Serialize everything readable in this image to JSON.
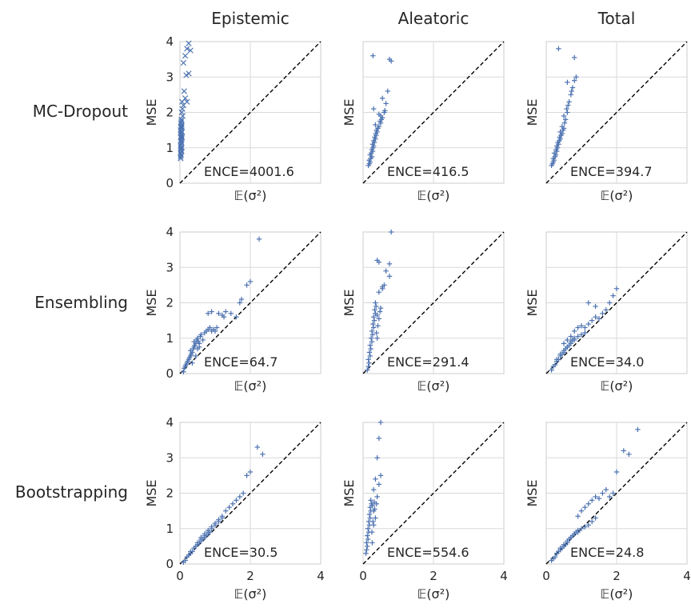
{
  "columns": [
    {
      "title": "Epistemic"
    },
    {
      "title": "Aleatoric"
    },
    {
      "title": "Total"
    }
  ],
  "rows": [
    {
      "label": "MC-Dropout"
    },
    {
      "label": "Ensembling"
    },
    {
      "label": "Bootstrapping"
    }
  ],
  "axes": {
    "xlabel": "𝔼(σ²)",
    "ylabel": "MSE",
    "xlim": [
      0,
      4
    ],
    "ylim": [
      0,
      4
    ],
    "x_ticks": [
      "0",
      "2",
      "4"
    ],
    "y_ticks": [
      "0",
      "1",
      "2",
      "3",
      "4"
    ],
    "grid": true,
    "reference_line": "y = x (dashed black)",
    "marker_color": "#4c72b0"
  },
  "chart_data": [
    {
      "type": "scatter",
      "row": "MC-Dropout",
      "column": "Epistemic",
      "annotation": "ENCE=4001.6",
      "marker": "x",
      "x": [
        0.02,
        0.03,
        0.02,
        0.04,
        0.03,
        0.05,
        0.02,
        0.03,
        0.04,
        0.03,
        0.05,
        0.02,
        0.04,
        0.03,
        0.06,
        0.02,
        0.04,
        0.03,
        0.05,
        0.03,
        0.04,
        0.02,
        0.05,
        0.03,
        0.04,
        0.06,
        0.03,
        0.05,
        0.04,
        0.08,
        0.05,
        0.07,
        0.1,
        0.06,
        0.15,
        0.2,
        0.12,
        0.18,
        0.25,
        0.1,
        0.15,
        0.2,
        0.25,
        0.3
      ],
      "y": [
        0.7,
        0.8,
        0.85,
        0.9,
        0.95,
        1.0,
        1.05,
        1.1,
        1.15,
        1.2,
        1.25,
        1.3,
        1.35,
        1.4,
        1.45,
        1.5,
        1.55,
        1.6,
        1.65,
        1.7,
        1.75,
        0.75,
        0.9,
        1.0,
        1.2,
        1.3,
        1.45,
        1.6,
        1.8,
        1.9,
        2.0,
        2.1,
        2.2,
        2.3,
        2.4,
        2.3,
        2.6,
        3.05,
        3.1,
        3.4,
        3.6,
        3.8,
        3.95,
        3.75
      ]
    },
    {
      "type": "scatter",
      "row": "MC-Dropout",
      "column": "Aleatoric",
      "annotation": "ENCE=416.5",
      "marker": "+",
      "x": [
        0.15,
        0.18,
        0.2,
        0.17,
        0.22,
        0.25,
        0.2,
        0.23,
        0.27,
        0.25,
        0.28,
        0.3,
        0.27,
        0.32,
        0.3,
        0.35,
        0.33,
        0.37,
        0.36,
        0.4,
        0.38,
        0.42,
        0.45,
        0.35,
        0.5,
        0.48,
        0.52,
        0.55,
        0.5,
        0.6,
        0.62,
        0.65,
        0.55,
        0.7,
        0.28,
        0.75,
        0.8,
        0.3,
        0.45
      ],
      "y": [
        0.5,
        0.55,
        0.6,
        0.65,
        0.7,
        0.75,
        0.8,
        0.85,
        0.9,
        0.95,
        1.0,
        1.05,
        1.1,
        1.15,
        1.2,
        1.25,
        1.3,
        1.35,
        1.4,
        1.45,
        1.5,
        1.55,
        1.6,
        1.65,
        1.7,
        1.75,
        1.8,
        1.85,
        1.9,
        2.0,
        2.05,
        2.25,
        2.4,
        2.6,
        3.6,
        3.5,
        3.45,
        2.1,
        1.95
      ]
    },
    {
      "type": "scatter",
      "row": "MC-Dropout",
      "column": "Total",
      "annotation": "ENCE=394.7",
      "marker": "+",
      "x": [
        0.15,
        0.18,
        0.2,
        0.22,
        0.2,
        0.25,
        0.27,
        0.23,
        0.3,
        0.28,
        0.32,
        0.3,
        0.35,
        0.33,
        0.37,
        0.4,
        0.38,
        0.42,
        0.45,
        0.4,
        0.48,
        0.5,
        0.45,
        0.52,
        0.55,
        0.5,
        0.6,
        0.58,
        0.62,
        0.65,
        0.7,
        0.75,
        0.72,
        0.8,
        0.6,
        0.85,
        0.35,
        0.8
      ],
      "y": [
        0.5,
        0.55,
        0.6,
        0.65,
        0.7,
        0.75,
        0.8,
        0.85,
        0.9,
        0.95,
        1.0,
        1.05,
        1.1,
        1.15,
        1.2,
        1.25,
        1.3,
        1.35,
        1.4,
        1.45,
        1.5,
        1.55,
        1.6,
        1.7,
        1.8,
        1.9,
        2.0,
        2.1,
        2.2,
        2.3,
        2.5,
        2.7,
        2.6,
        2.9,
        2.85,
        3.0,
        3.8,
        3.55
      ]
    },
    {
      "type": "scatter",
      "row": "Ensembling",
      "column": "Epistemic",
      "annotation": "ENCE=64.7",
      "marker": "+",
      "x": [
        0.1,
        0.12,
        0.15,
        0.17,
        0.2,
        0.22,
        0.25,
        0.27,
        0.3,
        0.32,
        0.35,
        0.3,
        0.38,
        0.4,
        0.42,
        0.45,
        0.4,
        0.48,
        0.5,
        0.52,
        0.55,
        0.5,
        0.58,
        0.6,
        0.35,
        0.45,
        0.55,
        0.65,
        0.7,
        0.75,
        0.8,
        0.85,
        0.9,
        0.95,
        1.0,
        1.05,
        0.8,
        0.9,
        1.1,
        1.2,
        1.3,
        1.25,
        1.45,
        1.6,
        1.7,
        1.75,
        1.9,
        2.0,
        2.25
      ],
      "y": [
        0.05,
        0.15,
        0.2,
        0.25,
        0.3,
        0.35,
        0.4,
        0.45,
        0.5,
        0.55,
        0.6,
        0.65,
        0.7,
        0.75,
        0.8,
        0.85,
        0.9,
        0.95,
        1.0,
        0.9,
        0.85,
        0.7,
        1.05,
        1.1,
        0.3,
        0.5,
        0.75,
        0.95,
        1.15,
        1.2,
        1.25,
        1.3,
        1.2,
        1.25,
        1.2,
        1.3,
        1.7,
        1.75,
        1.7,
        1.65,
        1.75,
        1.6,
        1.7,
        1.6,
        2.0,
        2.1,
        2.5,
        2.6,
        3.8
      ]
    },
    {
      "type": "scatter",
      "row": "Ensembling",
      "column": "Aleatoric",
      "annotation": "ENCE=291.4",
      "marker": "+",
      "x": [
        0.12,
        0.15,
        0.17,
        0.15,
        0.2,
        0.18,
        0.22,
        0.2,
        0.25,
        0.23,
        0.27,
        0.25,
        0.3,
        0.28,
        0.32,
        0.3,
        0.35,
        0.33,
        0.37,
        0.4,
        0.38,
        0.42,
        0.45,
        0.4,
        0.48,
        0.5,
        0.35,
        0.45,
        0.55,
        0.6,
        0.65,
        0.45,
        0.75,
        0.4,
        0.55,
        0.75,
        0.8
      ],
      "y": [
        0.1,
        0.2,
        0.3,
        0.4,
        0.5,
        0.6,
        0.7,
        0.8,
        0.9,
        1.0,
        1.1,
        1.2,
        1.3,
        1.4,
        1.5,
        1.6,
        1.7,
        1.8,
        1.9,
        1.0,
        1.15,
        1.35,
        1.55,
        1.65,
        1.75,
        1.85,
        2.0,
        2.3,
        2.4,
        2.5,
        2.9,
        3.15,
        3.1,
        3.2,
        2.45,
        2.75,
        4.0
      ]
    },
    {
      "type": "scatter",
      "row": "Ensembling",
      "column": "Total",
      "annotation": "ENCE=34.0",
      "marker": "+",
      "x": [
        0.15,
        0.2,
        0.25,
        0.3,
        0.35,
        0.4,
        0.45,
        0.5,
        0.55,
        0.6,
        0.65,
        0.7,
        0.75,
        0.8,
        0.3,
        0.4,
        0.5,
        0.6,
        0.7,
        0.8,
        0.9,
        1.0,
        1.1,
        0.5,
        0.6,
        0.7,
        0.8,
        0.9,
        1.0,
        1.1,
        1.2,
        1.3,
        1.4,
        1.5,
        1.6,
        1.7,
        1.8,
        1.9,
        2.0,
        1.2,
        1.4
      ],
      "y": [
        0.1,
        0.2,
        0.25,
        0.35,
        0.4,
        0.5,
        0.55,
        0.6,
        0.7,
        0.75,
        0.8,
        0.9,
        0.95,
        1.0,
        0.4,
        0.55,
        0.65,
        0.75,
        0.85,
        0.95,
        1.05,
        1.1,
        1.15,
        0.85,
        0.95,
        1.05,
        1.2,
        1.3,
        1.35,
        1.3,
        1.4,
        1.5,
        1.6,
        1.55,
        1.7,
        1.8,
        2.0,
        2.2,
        2.4,
        2.0,
        1.9
      ]
    },
    {
      "type": "scatter",
      "row": "Bootstrapping",
      "column": "Epistemic",
      "annotation": "ENCE=30.5",
      "marker": "+",
      "x": [
        0.1,
        0.15,
        0.2,
        0.25,
        0.3,
        0.35,
        0.4,
        0.45,
        0.5,
        0.55,
        0.6,
        0.65,
        0.7,
        0.75,
        0.8,
        0.85,
        0.3,
        0.4,
        0.5,
        0.6,
        0.7,
        0.8,
        0.9,
        1.0,
        1.1,
        1.2,
        0.6,
        0.7,
        0.8,
        0.9,
        1.0,
        1.1,
        1.2,
        1.3,
        1.4,
        1.5,
        1.6,
        1.7,
        1.8,
        1.9,
        2.0,
        2.2,
        2.35
      ],
      "y": [
        0.05,
        0.1,
        0.2,
        0.25,
        0.3,
        0.35,
        0.45,
        0.5,
        0.55,
        0.6,
        0.65,
        0.7,
        0.75,
        0.8,
        0.85,
        0.9,
        0.35,
        0.45,
        0.6,
        0.7,
        0.8,
        0.9,
        1.0,
        1.1,
        1.2,
        1.3,
        0.75,
        0.85,
        0.95,
        1.05,
        1.15,
        1.25,
        1.35,
        1.5,
        1.6,
        1.7,
        1.8,
        1.9,
        2.0,
        2.5,
        2.6,
        3.3,
        3.1
      ]
    },
    {
      "type": "scatter",
      "row": "Bootstrapping",
      "column": "Aleatoric",
      "annotation": "ENCE=554.6",
      "marker": "+",
      "x": [
        0.08,
        0.1,
        0.12,
        0.1,
        0.14,
        0.12,
        0.16,
        0.14,
        0.18,
        0.16,
        0.2,
        0.18,
        0.22,
        0.2,
        0.24,
        0.22,
        0.26,
        0.25,
        0.28,
        0.3,
        0.27,
        0.32,
        0.3,
        0.35,
        0.33,
        0.38,
        0.4,
        0.3,
        0.45,
        0.35,
        0.5,
        0.4,
        0.45,
        0.5
      ],
      "y": [
        0.3,
        0.4,
        0.5,
        0.6,
        0.7,
        0.8,
        0.9,
        1.0,
        1.1,
        1.2,
        1.3,
        1.4,
        1.5,
        1.6,
        1.7,
        1.8,
        0.6,
        0.9,
        1.2,
        1.5,
        1.65,
        1.75,
        1.1,
        1.3,
        1.55,
        1.7,
        1.9,
        2.1,
        2.25,
        2.4,
        2.5,
        3.0,
        3.55,
        4.0
      ]
    },
    {
      "type": "scatter",
      "row": "Bootstrapping",
      "column": "Total",
      "annotation": "ENCE=24.8",
      "marker": "+",
      "x": [
        0.15,
        0.2,
        0.25,
        0.3,
        0.35,
        0.4,
        0.45,
        0.5,
        0.55,
        0.6,
        0.65,
        0.7,
        0.75,
        0.8,
        0.85,
        0.9,
        0.3,
        0.4,
        0.5,
        0.6,
        0.7,
        0.8,
        0.9,
        1.0,
        1.1,
        1.2,
        1.3,
        1.4,
        0.9,
        1.0,
        1.1,
        1.2,
        1.3,
        1.4,
        1.5,
        1.6,
        1.7,
        1.8,
        1.9,
        2.0,
        2.2,
        2.35,
        2.6
      ],
      "y": [
        0.1,
        0.15,
        0.2,
        0.3,
        0.35,
        0.4,
        0.45,
        0.5,
        0.55,
        0.6,
        0.7,
        0.75,
        0.8,
        0.85,
        0.9,
        0.95,
        0.3,
        0.45,
        0.55,
        0.65,
        0.75,
        0.85,
        0.9,
        1.0,
        1.05,
        1.1,
        1.2,
        1.3,
        1.35,
        1.5,
        1.6,
        1.7,
        1.8,
        1.9,
        1.85,
        2.0,
        2.1,
        1.9,
        2.0,
        2.6,
        3.2,
        3.1,
        3.8
      ]
    }
  ]
}
